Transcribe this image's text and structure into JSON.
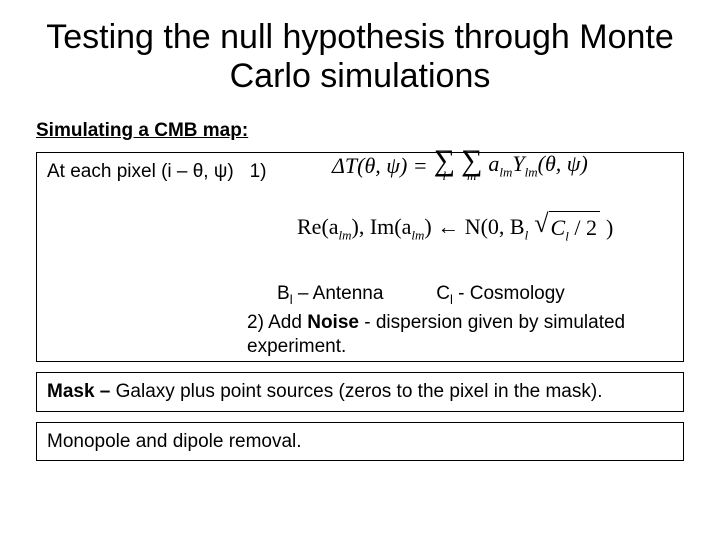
{
  "title": "Testing the null hypothesis through Monte Carlo simulations",
  "subheading": "Simulating  a CMB map:",
  "main": {
    "pixel_prefix": "At each pixel (i – θ, ψ)",
    "step1_marker": "1)",
    "formula1_lhs": "ΔT(θ, ψ) = ",
    "formula1_sum1_sub": "l",
    "formula1_sum2_sub": "m",
    "formula1_rhs": "a",
    "formula1_rhs_sub": "lm",
    "formula1_rhs2": "Y",
    "formula1_rhs2_sub": "lm",
    "formula1_rhs3": "(θ, ψ)",
    "formula2_re": "Re(a",
    "formula2_re_sub": "lm",
    "formula2_mid": "), Im(a",
    "formula2_im_sub": "lm",
    "formula2_close": ") ← N(0, B",
    "formula2_Bsub": "l",
    "formula2_root": "C",
    "formula2_root_sub": "l",
    "formula2_root_tail": " / 2",
    "formula2_end": ")",
    "ann_B": "B",
    "ann_B_sub": "l",
    "ann_B_txt": " – Antenna",
    "ann_C": "C",
    "ann_C_sub": "l",
    "ann_C_txt": " - Cosmology",
    "step2_marker": "2)",
    "step2_pre": "  Add ",
    "step2_bold": "Noise",
    "step2_post": "  - dispersion given by simulated experiment."
  },
  "box_mask_pre": "Mask – ",
  "box_mask_rest": "Galaxy plus point sources (zeros to the pixel in the mask).",
  "box_monopole": "Monopole and dipole removal."
}
